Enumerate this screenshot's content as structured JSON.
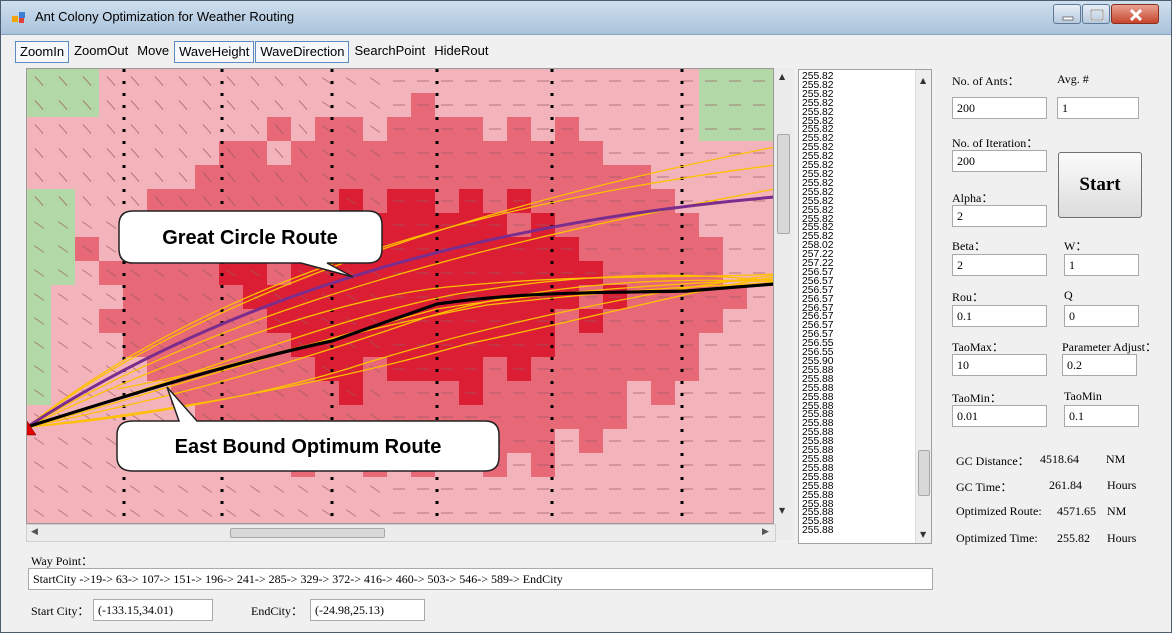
{
  "window": {
    "title": "Ant Colony Optimization for Weather Routing"
  },
  "menu": [
    "ZoomIn",
    "ZoomOut",
    "Move",
    "WaveHeight",
    "WaveDirection",
    "SearchPoint",
    "HideRout"
  ],
  "map": {
    "callout_great_circle": "Great Circle Route",
    "callout_east_bound": "East Bound Optimum Route",
    "colors": {
      "land": "#b2d8a8",
      "sea_light": "#f2b3ba",
      "sea_mid": "#e76877",
      "sea_dark": "#dc1e34",
      "great_circle_route": "#7a2d8c",
      "optimum_route": "#000000",
      "ant_paths": "#ffc000",
      "start_marker": "#e00000"
    }
  },
  "times_list": [
    "255.82",
    "255.82",
    "255.82",
    "255.82",
    "255.82",
    "255.82",
    "255.82",
    "255.82",
    "255.82",
    "255.82",
    "255.82",
    "255.82",
    "255.82",
    "255.82",
    "255.82",
    "255.82",
    "255.82",
    "255.82",
    "255.82",
    "258.02",
    "257.22",
    "257.22",
    "256.57",
    "256.57",
    "256.57",
    "256.57",
    "256.57",
    "256.57",
    "256.57",
    "256.57",
    "256.55",
    "256.55",
    "255.90",
    "255.88",
    "255.88",
    "255.88",
    "255.88",
    "255.88",
    "255.88",
    "255.88",
    "255.88",
    "255.88",
    "255.88",
    "255.88",
    "255.88",
    "255.88",
    "255.88",
    "255.88",
    "255.88",
    "255.88",
    "255.88",
    "255.88"
  ],
  "params": {
    "ants_label": "No. of Ants：",
    "ants_value": "200",
    "avg_label": "Avg. #",
    "avg_value": "1",
    "iteration_label": "No. of Iteration：",
    "iteration_value": "200",
    "alpha_label": "Alpha：",
    "alpha_value": "2",
    "beta_label": "Beta：",
    "beta_value": "2",
    "w_label": "W：",
    "w_value": "1",
    "rou_label": "Rou：",
    "rou_value": "0.1",
    "q_label": "Q",
    "q_value": "0",
    "taomax_label": "TaoMax：",
    "taomax_value": "10",
    "param_adjust_label": "Parameter Adjust：",
    "param_adjust_value": "0.2",
    "taomin_label": "TaoMin：",
    "taomin_value": "0.01",
    "taomin2_label": "TaoMin",
    "taomin2_value": "0.1",
    "start_button": "Start"
  },
  "results": {
    "gc_distance_label": "GC Distance：",
    "gc_distance_value": "4518.64",
    "gc_distance_unit": "NM",
    "gc_time_label": "GC Time：",
    "gc_time_value": "261.84",
    "gc_time_unit": "Hours",
    "opt_route_label": "Optimized Route:",
    "opt_route_value": "4571.65",
    "opt_route_unit": "NM",
    "opt_time_label": "Optimized Time:",
    "opt_time_value": "255.82",
    "opt_time_unit": "Hours"
  },
  "waypoints": {
    "label": "Way Point：",
    "value": "StartCity ->19-> 63-> 107-> 151-> 196-> 241-> 285-> 329-> 372-> 416-> 460-> 503-> 546-> 589-> EndCity"
  },
  "cities": {
    "start_label": "Start City：",
    "start_value": "(-133.15,34.01)",
    "end_label": "EndCity：",
    "end_value": "(-24.98,25.13)"
  }
}
